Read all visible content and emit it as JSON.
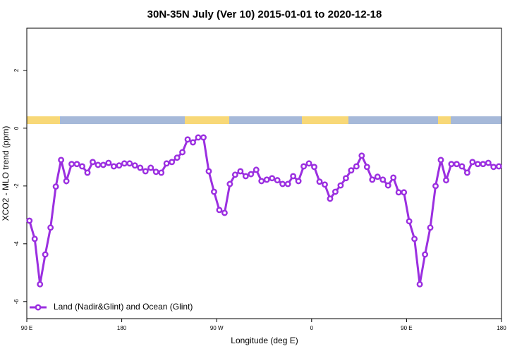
{
  "chart_data": {
    "type": "line",
    "title": "30N-35N July (Ver 10)   2015-01-01 to 2020-12-18",
    "x_label": "Longitude (deg E)",
    "y_label": "XCO2 - MLO trend (ppm)",
    "x": [
      92.5,
      97.5,
      102.5,
      107.5,
      112.5,
      117.5,
      122.5,
      127.5,
      132.5,
      137.5,
      142.5,
      147.5,
      152.5,
      157.5,
      162.5,
      167.5,
      172.5,
      177.5,
      182.5,
      187.5,
      192.5,
      197.5,
      202.5,
      207.5,
      212.5,
      217.5,
      222.5,
      227.5,
      232.5,
      237.5,
      242.5,
      247.5,
      252.5,
      257.5,
      262.5,
      267.5,
      272.5,
      277.5,
      282.5,
      287.5,
      292.5,
      297.5,
      302.5,
      307.5,
      312.5,
      317.5,
      322.5,
      327.5,
      332.5,
      337.5,
      342.5,
      347.5,
      352.5,
      357.5,
      362.5,
      367.5,
      372.5,
      377.5,
      382.5,
      387.5,
      392.5,
      397.5,
      402.5,
      407.5,
      412.5,
      417.5,
      422.5,
      427.5,
      432.5,
      437.5,
      442.5,
      447.5,
      452.5,
      457.5,
      462.5,
      467.5,
      472.5,
      477.5,
      482.5,
      487.5,
      492.5,
      497.5,
      502.5,
      507.5,
      512.5,
      517.5,
      522.5,
      527.5,
      532.5,
      537.5
    ],
    "series": [
      {
        "name": "Land (Nadir&Glint) and Ocean (Glint)",
        "color": "#9b2fe0",
        "values": [
          -3.2,
          -3.83,
          -5.4,
          -4.37,
          -3.44,
          -2.02,
          -1.1,
          -1.83,
          -1.24,
          -1.24,
          -1.32,
          -1.54,
          -1.17,
          -1.27,
          -1.27,
          -1.2,
          -1.32,
          -1.29,
          -1.22,
          -1.22,
          -1.29,
          -1.37,
          -1.49,
          -1.37,
          -1.51,
          -1.54,
          -1.22,
          -1.17,
          -1.02,
          -0.83,
          -0.39,
          -0.49,
          -0.32,
          -0.32,
          -1.49,
          -2.2,
          -2.83,
          -2.93,
          -1.93,
          -1.61,
          -1.49,
          -1.66,
          -1.59,
          -1.44,
          -1.83,
          -1.78,
          -1.73,
          -1.8,
          -1.93,
          -1.93,
          -1.66,
          -1.83,
          -1.32,
          -1.22,
          -1.34,
          -1.85,
          -1.95,
          -2.44,
          -2.2,
          -1.98,
          -1.73,
          -1.46,
          -1.32,
          -0.95,
          -1.34,
          -1.78,
          -1.68,
          -1.78,
          -1.98,
          -1.71,
          -2.22,
          -2.22,
          -3.22,
          -3.83,
          -5.4,
          -4.37,
          -3.44,
          -2.0,
          -1.1,
          -1.8,
          -1.24,
          -1.24,
          -1.32,
          -1.54,
          -1.17,
          -1.24,
          -1.24,
          -1.2,
          -1.34,
          -1.32
        ]
      }
    ],
    "xlim": [
      90,
      540
    ],
    "xticks": [
      {
        "value": 90,
        "label": "90 E"
      },
      180,
      {
        "value": 270,
        "label": "90 W"
      },
      {
        "value": 360,
        "label": "0"
      },
      {
        "value": 450,
        "label": "90 E"
      },
      {
        "value": 540,
        "label": "180"
      }
    ],
    "ylim": [
      -6.59,
      3.46
    ],
    "yticks": [
      -6,
      -4,
      -2,
      0,
      2
    ],
    "legend": "bottom-left"
  }
}
